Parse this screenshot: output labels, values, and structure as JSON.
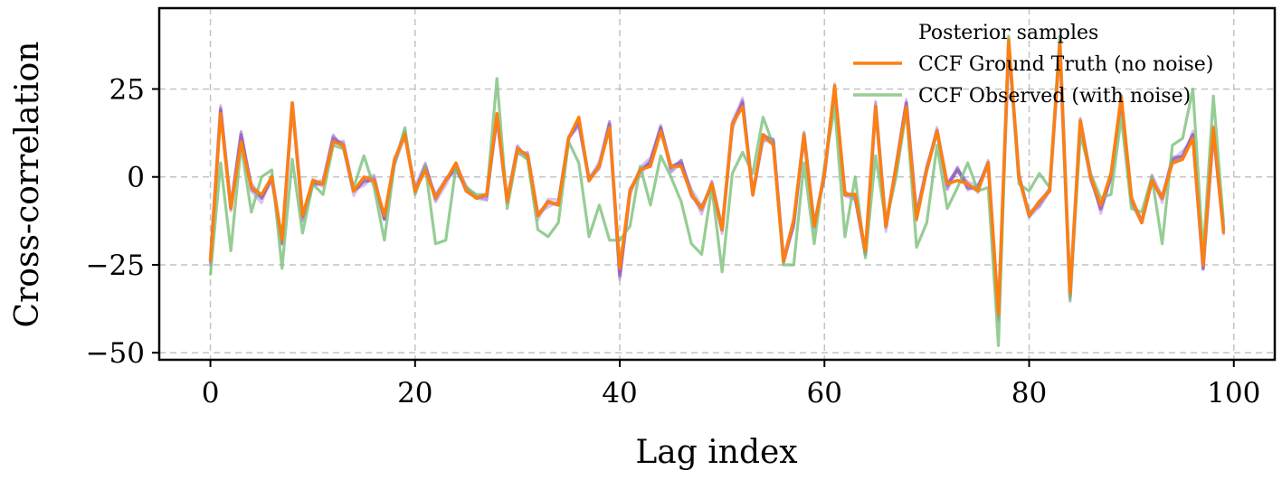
{
  "chart_data": {
    "type": "line",
    "title": "",
    "xlabel": "Lag index",
    "ylabel": "Cross-correlation",
    "xlim": [
      -5,
      104
    ],
    "ylim": [
      -52,
      48
    ],
    "xticks": [
      0,
      20,
      40,
      60,
      80,
      100
    ],
    "yticks": [
      -50,
      -25,
      0,
      25
    ],
    "xtick_labels": [
      "0",
      "20",
      "40",
      "60",
      "80",
      "100"
    ],
    "ytick_labels": [
      "−50",
      "−25",
      "0",
      "25"
    ],
    "grid": true,
    "legend_position": "top-right",
    "x": [
      0,
      1,
      2,
      3,
      4,
      5,
      6,
      7,
      8,
      9,
      10,
      11,
      12,
      13,
      14,
      15,
      16,
      17,
      18,
      19,
      20,
      21,
      22,
      23,
      24,
      25,
      26,
      27,
      28,
      29,
      30,
      31,
      32,
      33,
      34,
      35,
      36,
      37,
      38,
      39,
      40,
      41,
      42,
      43,
      44,
      45,
      46,
      47,
      48,
      49,
      50,
      51,
      52,
      53,
      54,
      55,
      56,
      57,
      58,
      59,
      60,
      61,
      62,
      63,
      64,
      65,
      66,
      67,
      68,
      69,
      70,
      71,
      72,
      73,
      74,
      75,
      76,
      77,
      78,
      79,
      80,
      81,
      82,
      83,
      84,
      85,
      86,
      87,
      88,
      89,
      90,
      91,
      92,
      93,
      94,
      95,
      96,
      97,
      98,
      99
    ],
    "series": [
      {
        "name": "Posterior samples",
        "color": "#8e5bbf",
        "values": [
          -24,
          19,
          -9,
          12,
          -3,
          -6,
          0,
          -19,
          21,
          -11,
          -2,
          -2,
          11,
          9,
          -4,
          -1,
          -1,
          -12,
          5,
          12,
          -4,
          3,
          -6,
          -1,
          3,
          -4,
          -6,
          -5,
          17,
          -7,
          8,
          6,
          -11,
          -7,
          -8,
          11,
          16,
          -1,
          3,
          15,
          -28,
          -4,
          2,
          4,
          14,
          3,
          4,
          -5,
          -9,
          -2,
          -15,
          15,
          21,
          -5,
          12,
          10,
          -24,
          -13,
          12,
          -14,
          1,
          25,
          -5,
          -5,
          -22,
          20,
          -14,
          3,
          21,
          -11,
          2,
          13,
          -2,
          2,
          -3,
          -3,
          4,
          -40,
          38,
          0,
          -11,
          -7,
          -4,
          38,
          -34,
          16,
          0,
          -9,
          0,
          22,
          -6,
          -13,
          -1,
          -6,
          5,
          6,
          12,
          -26,
          13,
          -15
        ]
      },
      {
        "name": "CCF Ground Truth (no noise)",
        "color": "#ff7f0e",
        "values": [
          -24,
          18,
          -9,
          10,
          -3,
          -5,
          0,
          -18,
          21,
          -11,
          -1,
          -2,
          10,
          9,
          -4,
          0,
          -1,
          -11,
          5,
          12,
          -4,
          2,
          -6,
          -1,
          4,
          -4,
          -6,
          -5,
          18,
          -7,
          8,
          6,
          -11,
          -7,
          -8,
          11,
          17,
          -1,
          3,
          14,
          -26,
          -4,
          2,
          3,
          13,
          3,
          3,
          -5,
          -9,
          -2,
          -15,
          15,
          20,
          -5,
          12,
          9,
          -24,
          -12,
          12,
          -14,
          1,
          26,
          -5,
          -5,
          -21,
          20,
          -14,
          3,
          20,
          -12,
          2,
          13,
          -2,
          -1,
          -2,
          -4,
          4,
          -39,
          39,
          0,
          -11,
          -7,
          -4,
          38,
          -33,
          16,
          0,
          -8,
          1,
          23,
          -6,
          -13,
          -1,
          -6,
          4,
          5,
          11,
          -25,
          14,
          -16
        ]
      },
      {
        "name": "CCF Observed (with noise)",
        "color": "#7cc17a",
        "values": [
          -28,
          4,
          -21,
          9,
          -10,
          0,
          2,
          -26,
          5,
          -16,
          -2,
          -5,
          9,
          8,
          -3,
          6,
          -3,
          -18,
          4,
          14,
          -5,
          3,
          -19,
          -18,
          3,
          -3,
          -5,
          -5,
          28,
          -9,
          7,
          5,
          -15,
          -17,
          -13,
          10,
          4,
          -17,
          -8,
          -18,
          -18,
          -14,
          3,
          -8,
          6,
          0,
          -7,
          -19,
          -22,
          -3,
          -27,
          1,
          7,
          1,
          17,
          9,
          -25,
          -25,
          4,
          -19,
          3,
          20,
          -17,
          0,
          -23,
          6,
          -13,
          0,
          19,
          -20,
          -13,
          9,
          -9,
          -3,
          4,
          -4,
          -3,
          -48,
          40,
          -2,
          -4,
          1,
          -3,
          40,
          -35,
          12,
          1,
          -6,
          -5,
          17,
          -9,
          -10,
          0,
          -19,
          9,
          11,
          25,
          -22,
          23,
          -13
        ]
      }
    ]
  }
}
